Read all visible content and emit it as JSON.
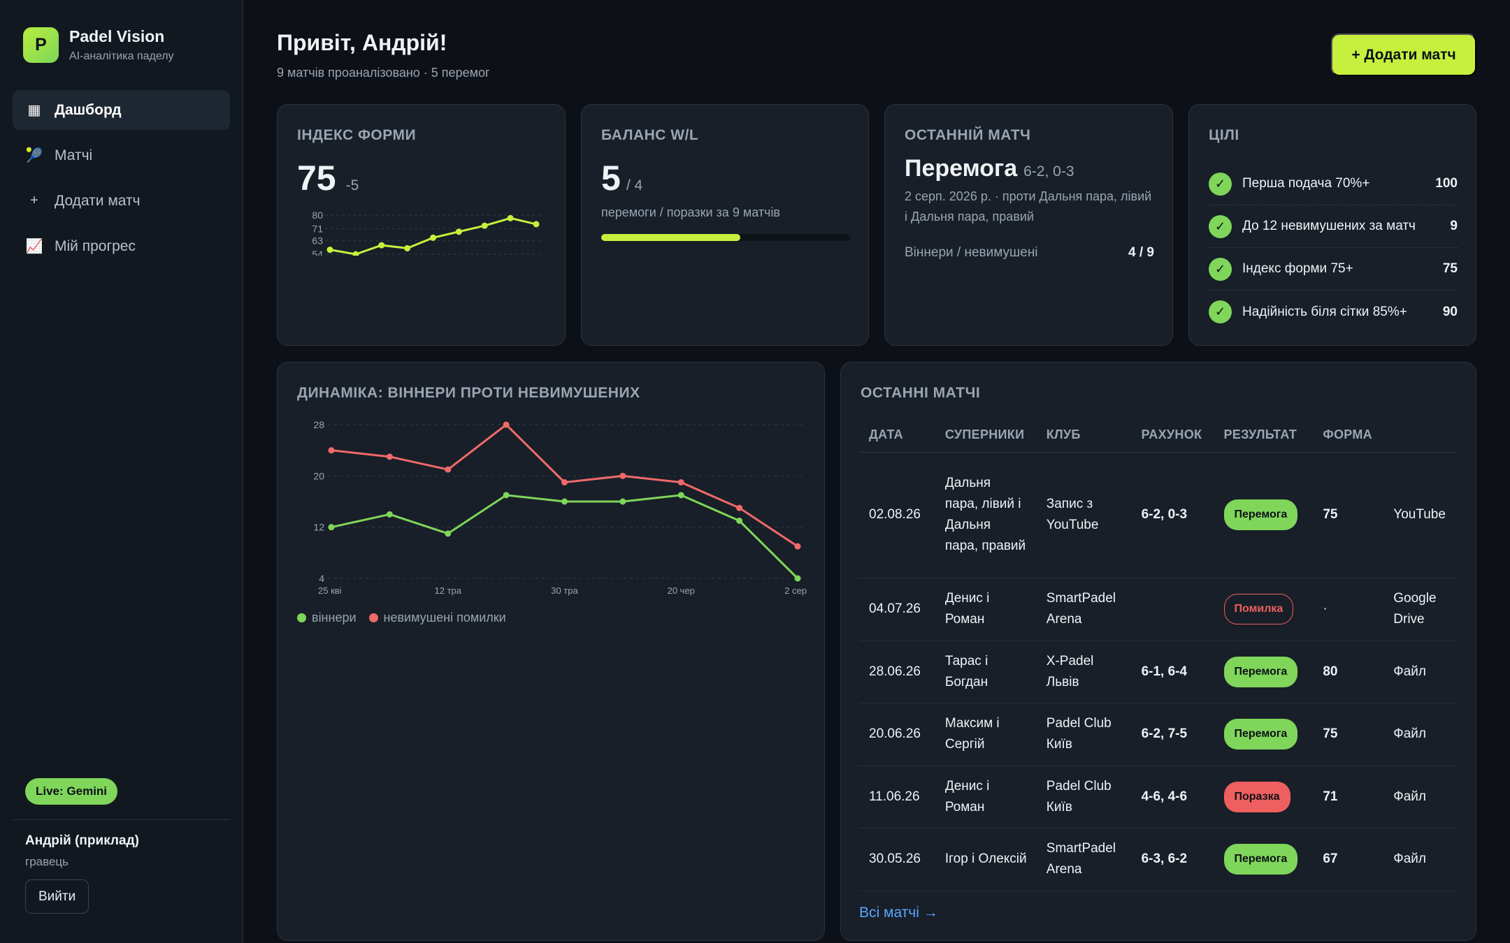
{
  "brand": {
    "logo_letter": "P",
    "name": "Padel Vision",
    "tagline": "AI-аналітика паделу"
  },
  "nav": [
    {
      "label": "Дашборд",
      "icon": "dashboard-icon",
      "glyph": "▦",
      "active": true
    },
    {
      "label": "Матчі",
      "icon": "racket-icon",
      "glyph": "🎾",
      "active": false
    },
    {
      "label": "Додати матч",
      "icon": "plus-icon",
      "glyph": "+",
      "active": false
    },
    {
      "label": "Мій прогрес",
      "icon": "chart-icon",
      "glyph": "📈",
      "active": false
    }
  ],
  "sidebar_footer": {
    "live_badge": "Live: Gemini",
    "user_name": "Андрій (приклад)",
    "user_role": "гравець",
    "logout_label": "Вийти"
  },
  "header": {
    "greeting": "Привіт, Андрій!",
    "subtitle": "9 матчів проаналізовано · 5 перемог",
    "add_button": "+ Додати матч"
  },
  "form_index": {
    "title": "ІНДЕКС ФОРМИ",
    "value": "75",
    "delta": "-5",
    "spark_ticks": [
      80,
      71,
      63,
      54
    ],
    "spark_values": [
      57,
      54,
      60,
      58,
      65,
      69,
      73,
      78,
      74
    ]
  },
  "balance": {
    "title": "БАЛАНС W/L",
    "wins": "5",
    "losses": "/ 4",
    "caption": "перемоги / поразки за 9 матчів",
    "progress": 0.56
  },
  "last_match": {
    "title": "ОСТАННІЙ МАТЧ",
    "result": "Перемога",
    "score": "6-2, 0-3",
    "description": "2 серп. 2026 р. · проти Дальня пара, лівий і Дальня пара, правий",
    "stat_label": "Віннери / невимушені",
    "stat_value": "4 / 9"
  },
  "goals": {
    "title": "ЦІЛІ",
    "items": [
      {
        "label": "Перша подача 70%+",
        "value": "100"
      },
      {
        "label": "До 12 невимушених за матч",
        "value": "9"
      },
      {
        "label": "Індекс форми 75+",
        "value": "75"
      },
      {
        "label": "Надійність біля сітки 85%+",
        "value": "90"
      }
    ]
  },
  "dynamics": {
    "title": "ДИНАМІКА: ВІННЕРИ ПРОТИ НЕВИМУШЕНИХ",
    "legend": {
      "winners": "віннери",
      "errors": "невимушені помилки"
    }
  },
  "chart_data": {
    "type": "line",
    "title": "ДИНАМІКА: ВІННЕРИ ПРОТИ НЕВИМУШЕНИХ",
    "x_tick_labels": [
      "25 кві",
      "12 тра",
      "30 тра",
      "20 чер",
      "2 сер"
    ],
    "y_ticks": [
      4,
      12,
      20,
      28
    ],
    "ylim": [
      4,
      28
    ],
    "grid": true,
    "legend_position": "bottom-left",
    "series": [
      {
        "name": "віннери",
        "color": "#7fd65a",
        "values": [
          12,
          14,
          11,
          17,
          16,
          16,
          17,
          13,
          4
        ]
      },
      {
        "name": "невимушені помилки",
        "color": "#ef6a6a",
        "values": [
          24,
          23,
          21,
          28,
          19,
          20,
          19,
          15,
          9
        ]
      }
    ]
  },
  "recent_matches": {
    "title": "ОСТАННІ МАТЧІ",
    "columns": [
      "ДАТА",
      "СУПЕРНИКИ",
      "КЛУБ",
      "РАХУНОК",
      "РЕЗУЛЬТАТ",
      "ФОРМА",
      ""
    ],
    "rows": [
      {
        "date": "02.08.26",
        "opponents": "Дальня пара, лівий і Дальня пара, правий",
        "club": "Запис з YouTube",
        "score": "6-2, 0-3",
        "result": "Перемога",
        "result_type": "win",
        "form": "75",
        "source": "YouTube"
      },
      {
        "date": "04.07.26",
        "opponents": "Денис і Роман",
        "club": "SmartPadel Arena",
        "score": "",
        "result": "Помилка",
        "result_type": "error",
        "form": "·",
        "source": "Google Drive"
      },
      {
        "date": "28.06.26",
        "opponents": "Тарас і Богдан",
        "club": "X-Padel Львів",
        "score": "6-1, 6-4",
        "result": "Перемога",
        "result_type": "win",
        "form": "80",
        "source": "Файл"
      },
      {
        "date": "20.06.26",
        "opponents": "Максим і Сергій",
        "club": "Padel Club Київ",
        "score": "6-2, 7-5",
        "result": "Перемога",
        "result_type": "win",
        "form": "75",
        "source": "Файл"
      },
      {
        "date": "11.06.26",
        "opponents": "Денис і Роман",
        "club": "Padel Club Київ",
        "score": "4-6, 4-6",
        "result": "Поразка",
        "result_type": "loss",
        "form": "71",
        "source": "Файл"
      },
      {
        "date": "30.05.26",
        "opponents": "Ігор і Олексій",
        "club": "SmartPadel Arena",
        "score": "6-3, 6-2",
        "result": "Перемога",
        "result_type": "win",
        "form": "67",
        "source": "Файл"
      }
    ],
    "all_link": "Всі матчі →"
  }
}
